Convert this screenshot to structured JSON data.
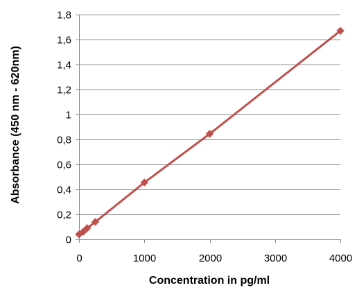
{
  "chart_data": {
    "type": "line",
    "title": "",
    "xlabel": "Concentration in pg/ml",
    "ylabel": "Absorbance (450 nm - 620nm)",
    "xlim": [
      0,
      4000
    ],
    "ylim": [
      0,
      1.8
    ],
    "x_ticks": [
      "0",
      "1000",
      "2000",
      "3000",
      "4000"
    ],
    "x_tick_values": [
      0,
      1000,
      2000,
      3000,
      4000
    ],
    "y_ticks": [
      "0",
      "0,2",
      "0,4",
      "0,6",
      "0,8",
      "1",
      "1,2",
      "1,4",
      "1,6",
      "1,8"
    ],
    "y_tick_values": [
      0,
      0.2,
      0.4,
      0.6,
      0.8,
      1.0,
      1.2,
      1.4,
      1.6,
      1.8
    ],
    "grid": "horizontal",
    "legend": "none",
    "series": [
      {
        "color": "#C0504D",
        "marker": "diamond",
        "x": [
          0,
          62.5,
          125,
          250,
          1000,
          2000,
          4000
        ],
        "y": [
          0.04,
          0.06,
          0.09,
          0.14,
          0.455,
          0.845,
          1.67
        ]
      }
    ]
  }
}
